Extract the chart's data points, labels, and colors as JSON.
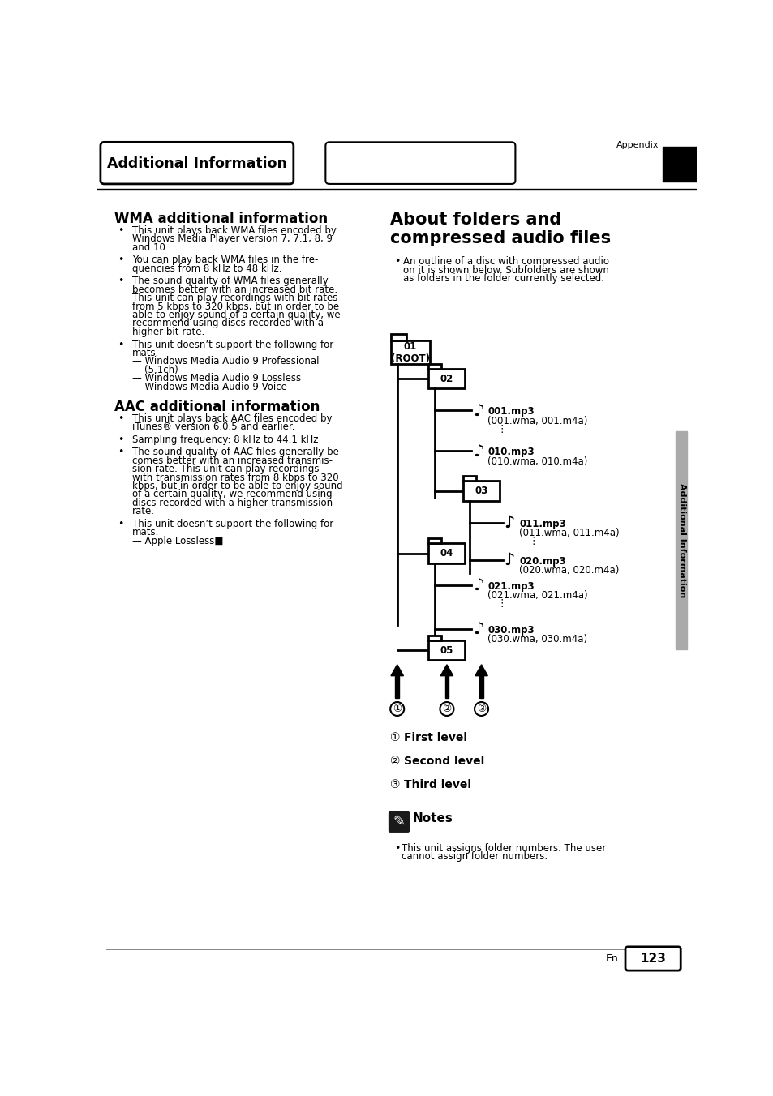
{
  "title_header": "Additional Information",
  "appendix_label": "Appendix",
  "page_number": "123",
  "bg_color": "#ffffff",
  "text_color": "#000000",
  "wma_section": {
    "title": "WMA additional information",
    "bullets": [
      "This unit plays back WMA files encoded by\nWindows Media Player version 7, 7.1, 8, 9\nand 10.",
      "You can play back WMA files in the fre-\nquencies from 8 kHz to 48 kHz.",
      "The sound quality of WMA files generally\nbecomes better with an increased bit rate.\nThis unit can play recordings with bit rates\nfrom 5 kbps to 320 kbps, but in order to be\nable to enjoy sound of a certain quality, we\nrecommend using discs recorded with a\nhigher bit rate.",
      "This unit doesn’t support the following for-\nmats.\n— Windows Media Audio 9 Professional\n    (5.1ch)\n— Windows Media Audio 9 Lossless\n— Windows Media Audio 9 Voice"
    ]
  },
  "aac_section": {
    "title": "AAC additional information",
    "bullets": [
      "This unit plays back AAC files encoded by\niTunes® version 6.0.5 and earlier.",
      "Sampling frequency: 8 kHz to 44.1 kHz",
      "The sound quality of AAC files generally be-\ncomes better with an increased transmis-\nsion rate. This unit can play recordings\nwith transmission rates from 8 kbps to 320\nkbps, but in order to be able to enjoy sound\nof a certain quality, we recommend using\ndiscs recorded with a higher transmission\nrate.",
      "This unit doesn’t support the following for-\nmats.\n— Apple Lossless■"
    ]
  },
  "right_section": {
    "title_line1": "About folders and",
    "title_line2": "compressed audio files",
    "bullet": "An outline of a disc with compressed audio\non it is shown below. Subfolders are shown\nas folders in the folder currently selected.",
    "level1": "First level",
    "level2": "Second level",
    "level3": "Third level",
    "notes_title": "Notes",
    "notes_bullet": "This unit assigns folder numbers. The user\ncannot assign folder numbers."
  },
  "sidebar_text": "Additional Information",
  "tree": {
    "root_label": "01\n(ROOT)",
    "f02_label": "02",
    "f03_label": "03",
    "f04_label": "04",
    "f05_label": "05",
    "file1_top": "001.mp3",
    "file1_bot": "(001.wma, 001.m4a)",
    "file2_top": "010.mp3",
    "file2_bot": "(010.wma, 010.m4a)",
    "file3_top": "011.mp3",
    "file3_bot": "(011.wma, 011.m4a)",
    "file4_top": "020.mp3",
    "file4_bot": "(020.wma, 020.m4a)",
    "file5_top": "021.mp3",
    "file5_bot": "(021.wma, 021.m4a)",
    "file6_top": "030.mp3",
    "file6_bot": "(030.wma, 030.m4a)"
  }
}
